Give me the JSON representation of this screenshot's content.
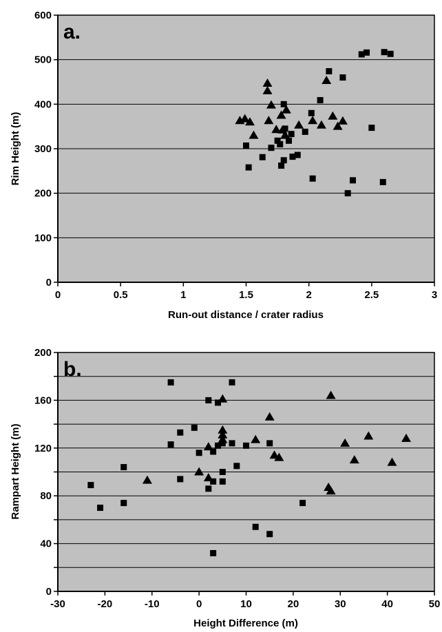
{
  "chart_data": [
    {
      "type": "scatter",
      "panel_label": "a.",
      "title": "",
      "xlabel": "Run-out distance / crater radius",
      "ylabel": "Rim Height (m)",
      "xlim": [
        0,
        3
      ],
      "ylim": [
        0,
        600
      ],
      "xticks": [
        0,
        0.5,
        1,
        1.5,
        2,
        2.5,
        3
      ],
      "xtick_labels": [
        "0",
        "0.5",
        "1",
        "1.5",
        "2",
        "2.5",
        "3"
      ],
      "yticks": [
        0,
        100,
        200,
        300,
        400,
        500,
        600
      ],
      "ytick_labels": [
        "0",
        "100",
        "200",
        "300",
        "400",
        "500",
        "600"
      ],
      "grid": "horizontal",
      "background_color": "#c0c0c0",
      "marker_color": "#000000",
      "series": [
        {
          "marker": "square",
          "points": [
            [
              1.5,
              307
            ],
            [
              1.52,
              258
            ],
            [
              1.63,
              281
            ],
            [
              1.7,
              302
            ],
            [
              1.75,
              318
            ],
            [
              1.77,
              310
            ],
            [
              1.78,
              262
            ],
            [
              1.8,
              274
            ],
            [
              1.8,
              400
            ],
            [
              1.81,
              345
            ],
            [
              1.84,
              318
            ],
            [
              1.87,
              282
            ],
            [
              1.86,
              333
            ],
            [
              1.91,
              286
            ],
            [
              1.97,
              338
            ],
            [
              2.02,
              380
            ],
            [
              2.03,
              233
            ],
            [
              2.09,
              409
            ],
            [
              2.16,
              474
            ],
            [
              2.27,
              460
            ],
            [
              2.31,
              200
            ],
            [
              2.35,
              229
            ],
            [
              2.42,
              512
            ],
            [
              2.46,
              516
            ],
            [
              2.5,
              347
            ],
            [
              2.59,
              225
            ],
            [
              2.6,
              517
            ],
            [
              2.65,
              513
            ]
          ]
        },
        {
          "marker": "triangle",
          "points": [
            [
              1.45,
              363
            ],
            [
              1.49,
              367
            ],
            [
              1.53,
              360
            ],
            [
              1.56,
              330
            ],
            [
              1.67,
              447
            ],
            [
              1.67,
              430
            ],
            [
              1.68,
              363
            ],
            [
              1.7,
              398
            ],
            [
              1.74,
              343
            ],
            [
              1.78,
              375
            ],
            [
              1.79,
              342
            ],
            [
              1.81,
              330
            ],
            [
              1.82,
              387
            ],
            [
              1.92,
              353
            ],
            [
              2.03,
              363
            ],
            [
              2.1,
              353
            ],
            [
              2.14,
              453
            ],
            [
              2.19,
              373
            ],
            [
              2.23,
              350
            ],
            [
              2.27,
              362
            ]
          ]
        }
      ]
    },
    {
      "type": "scatter",
      "panel_label": "b.",
      "title": "",
      "xlabel": "Height Difference (m)",
      "ylabel": "Rampart Height (m)",
      "xlim": [
        -30,
        50
      ],
      "ylim": [
        0,
        200
      ],
      "xticks": [
        -30,
        -20,
        -10,
        0,
        10,
        20,
        30,
        40,
        50
      ],
      "xtick_labels": [
        "-30",
        "-20",
        "-10",
        "0",
        "10",
        "20",
        "30",
        "40",
        "50"
      ],
      "yticks": [
        0,
        20,
        40,
        60,
        80,
        100,
        120,
        140,
        160,
        180,
        200
      ],
      "ytick_labels": [
        "0",
        "",
        "40",
        "",
        "80",
        "",
        "120",
        "",
        "160",
        "",
        "200"
      ],
      "grid": "horizontal",
      "background_color": "#c0c0c0",
      "marker_color": "#000000",
      "series": [
        {
          "marker": "square",
          "points": [
            [
              -23,
              89
            ],
            [
              -21,
              70
            ],
            [
              -16,
              104
            ],
            [
              -16,
              74
            ],
            [
              -6,
              175
            ],
            [
              -6,
              123
            ],
            [
              -4,
              133
            ],
            [
              -4,
              94
            ],
            [
              -1,
              137
            ],
            [
              0,
              116
            ],
            [
              2,
              160
            ],
            [
              2,
              86
            ],
            [
              3,
              117
            ],
            [
              3,
              92
            ],
            [
              3,
              32
            ],
            [
              4,
              158
            ],
            [
              4,
              122
            ],
            [
              5,
              124
            ],
            [
              5,
              100
            ],
            [
              5,
              92
            ],
            [
              7,
              175
            ],
            [
              7,
              124
            ],
            [
              8,
              105
            ],
            [
              10,
              122
            ],
            [
              12,
              54
            ],
            [
              15,
              124
            ],
            [
              15,
              48
            ],
            [
              22,
              74
            ]
          ]
        },
        {
          "marker": "triangle",
          "points": [
            [
              -11,
              93
            ],
            [
              0,
              100
            ],
            [
              2,
              121
            ],
            [
              2,
              95
            ],
            [
              5,
              161
            ],
            [
              5,
              135
            ],
            [
              5,
              131
            ],
            [
              5,
              127
            ],
            [
              12,
              127
            ],
            [
              15,
              146
            ],
            [
              16,
              114
            ],
            [
              17,
              112
            ],
            [
              27.5,
              87
            ],
            [
              28,
              164
            ],
            [
              28,
              84
            ],
            [
              31,
              124
            ],
            [
              33,
              110
            ],
            [
              36,
              130
            ],
            [
              41,
              108
            ],
            [
              44,
              128
            ]
          ]
        }
      ]
    }
  ]
}
